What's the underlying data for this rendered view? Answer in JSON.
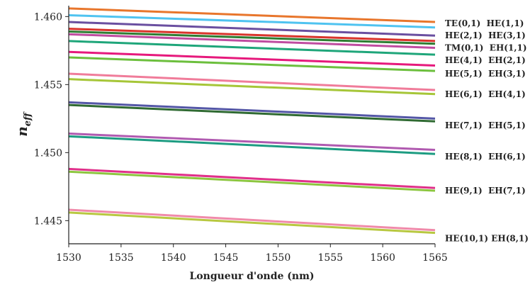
{
  "chart_data": {
    "type": "line",
    "title": "",
    "xlabel": "Longueur d'onde (nm)",
    "ylabel_main": "n",
    "ylabel_sub": "eff",
    "xlim": [
      1530,
      1565
    ],
    "ylim": [
      1.4433,
      1.4608
    ],
    "xticks": [
      1530,
      1535,
      1540,
      1545,
      1550,
      1555,
      1560,
      1565
    ],
    "yticks": [
      1.445,
      1.45,
      1.455,
      1.46
    ],
    "ytick_labels": [
      "1.445",
      "1.450",
      "1.455",
      "1.460"
    ],
    "grid": false,
    "x": [
      1530,
      1565
    ],
    "series": [
      {
        "values": [
          1.4606,
          1.4596
        ],
        "color": "#e8762c"
      },
      {
        "values": [
          1.4601,
          1.4592
        ],
        "color": "#4fc3f0"
      },
      {
        "values": [
          1.4596,
          1.4586
        ],
        "color": "#6a4fa0"
      },
      {
        "values": [
          1.4591,
          1.4582
        ],
        "color": "#d9342b"
      },
      {
        "values": [
          1.4589,
          1.458
        ],
        "color": "#2e7d32"
      },
      {
        "values": [
          1.4587,
          1.4577
        ],
        "color": "#c04ca0"
      },
      {
        "values": [
          1.4582,
          1.4572
        ],
        "color": "#1fa67a"
      },
      {
        "values": [
          1.4574,
          1.4564
        ],
        "color": "#e6197c"
      },
      {
        "values": [
          1.457,
          1.456
        ],
        "color": "#6cbf3d"
      },
      {
        "values": [
          1.4558,
          1.4546
        ],
        "color": "#f07c9a"
      },
      {
        "values": [
          1.4554,
          1.4543
        ],
        "color": "#a6c638"
      },
      {
        "values": [
          1.4537,
          1.4525
        ],
        "color": "#5356a6"
      },
      {
        "values": [
          1.4535,
          1.4523
        ],
        "color": "#2f6a32"
      },
      {
        "values": [
          1.4514,
          1.4502
        ],
        "color": "#b05ab0"
      },
      {
        "values": [
          1.4512,
          1.4499
        ],
        "color": "#1d9c82"
      },
      {
        "values": [
          1.4488,
          1.4474
        ],
        "color": "#e0308a"
      },
      {
        "values": [
          1.4486,
          1.4472
        ],
        "color": "#8cc63f"
      },
      {
        "values": [
          1.4458,
          1.4443
        ],
        "color": "#f08aaa"
      },
      {
        "values": [
          1.4456,
          1.4441
        ],
        "color": "#b8c840"
      }
    ],
    "annotations": [
      {
        "text": "TE(0,1)  HE(1,1)",
        "y": 1.4595
      },
      {
        "text": "HE(2,1)  HE(3,1)",
        "y": 1.4586
      },
      {
        "text": "TM(0,1)  EH(1,1)",
        "y": 1.4577
      },
      {
        "text": "HE(4,1)  EH(2,1)",
        "y": 1.4568
      },
      {
        "text": "HE(5,1)  EH(3,1)",
        "y": 1.4558
      },
      {
        "text": "HE(6,1)  EH(4,1)",
        "y": 1.4543
      },
      {
        "text": "HE(7,1)  EH(5,1)",
        "y": 1.452
      },
      {
        "text": "HE(8,1)  EH(6,1)",
        "y": 1.4497
      },
      {
        "text": "HE(9,1)  EH(7,1)",
        "y": 1.4472
      },
      {
        "text": "HE(10,1) EH(8,1)",
        "y": 1.4437
      }
    ]
  }
}
